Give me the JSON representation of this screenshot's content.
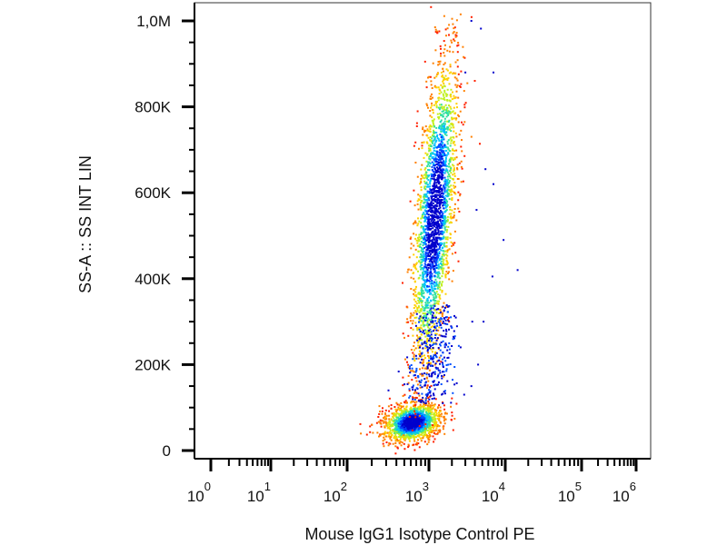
{
  "chart_data": {
    "type": "scatter",
    "xlabel": "Mouse IgG1 Isotype Control PE",
    "ylabel": "SS-A :: SS INT LIN",
    "x_scale": "log",
    "xlim": [
      0,
      1000000
    ],
    "ylim": [
      0,
      1050000
    ],
    "x_ticks": [
      {
        "base": "10",
        "exp": "0"
      },
      {
        "base": "10",
        "exp": "1"
      },
      {
        "base": "10",
        "exp": "2"
      },
      {
        "base": "10",
        "exp": "3"
      },
      {
        "base": "10",
        "exp": "4"
      },
      {
        "base": "10",
        "exp": "5"
      },
      {
        "base": "10",
        "exp": "6"
      }
    ],
    "y_ticks": [
      "0",
      "200K",
      "400K",
      "600K",
      "800K",
      "1,0M"
    ],
    "density_colors": [
      "#0000cc",
      "#0040ff",
      "#00c0ff",
      "#30e0a0",
      "#c0f020",
      "#ffd000",
      "#ff8000",
      "#ff2000"
    ],
    "populations": [
      {
        "x_center": 630,
        "y_center": 65000,
        "x_spread_decades": 0.18,
        "y_spread": 22000
      },
      {
        "x_center": 1200,
        "y_center": 550000,
        "x_spread_decades": 0.12,
        "y_spread": 180000
      }
    ],
    "outliers": [
      {
        "x": 4800,
        "y": 982000
      },
      {
        "x": 7000,
        "y": 880000
      },
      {
        "x": 5500,
        "y": 655000
      },
      {
        "x": 9500,
        "y": 490000
      },
      {
        "x": 14500,
        "y": 420000
      },
      {
        "x": 4200,
        "y": 560000
      },
      {
        "x": 3600,
        "y": 1000000
      },
      {
        "x": 3000,
        "y": 880000
      },
      {
        "x": 5200,
        "y": 300000
      },
      {
        "x": 6800,
        "y": 405000
      },
      {
        "x": 7000,
        "y": 620000
      },
      {
        "x": 320,
        "y": 140000
      },
      {
        "x": 3600,
        "y": 150000
      },
      {
        "x": 4400,
        "y": 200000
      },
      {
        "x": 3700,
        "y": 300000
      },
      {
        "x": 2900,
        "y": 130000
      }
    ]
  }
}
